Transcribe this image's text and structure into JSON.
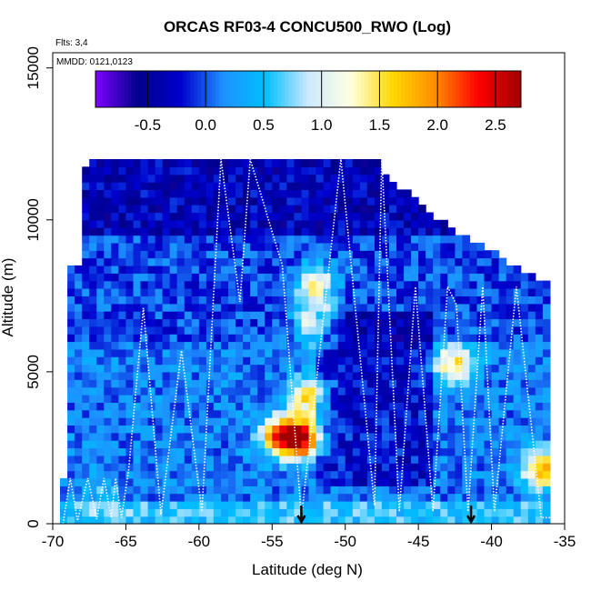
{
  "chart_data": {
    "type": "heatmap",
    "title": "ORCAS RF03-4 CONCU500_RWO (Log)",
    "annotations": [
      "Flts: 3,4",
      "MMDD: 0121,0123"
    ],
    "xlabel": "Latitude (deg N)",
    "ylabel": "Altitude (m)",
    "xlim": [
      -70,
      -35
    ],
    "ylim": [
      0,
      15500
    ],
    "x_ticks": [
      "-70",
      "-65",
      "-60",
      "-55",
      "-50",
      "-45",
      "-40",
      "-35"
    ],
    "y_ticks": [
      "0",
      "5000",
      "10000",
      "15000"
    ],
    "colorbar": {
      "range": [
        -0.95,
        2.72
      ],
      "ticks": [
        "-0.5",
        "0.0",
        "0.5",
        "1.0",
        "1.5",
        "2.0",
        "2.5"
      ],
      "colors": [
        "#7f00ff",
        "#00008b",
        "#0000cd",
        "#1e90ff",
        "#00bfff",
        "#cde8ff",
        "#ffffe0",
        "#ffd700",
        "#ff8c00",
        "#ff0000",
        "#a00000"
      ]
    },
    "flight_track_color": "#ffffff",
    "markers": [
      {
        "type": "down-arrow",
        "lat": -53.0
      },
      {
        "type": "down-arrow",
        "lat": -41.4
      }
    ],
    "hotspots": [
      {
        "lat": -53.0,
        "alt": 2800,
        "value": 2.5
      },
      {
        "lat": -54.5,
        "alt": 2900,
        "value": 2.0
      },
      {
        "lat": -52.0,
        "alt": 7900,
        "value": 1.6
      },
      {
        "lat": -52.0,
        "alt": 6600,
        "value": 1.4
      },
      {
        "lat": -52.5,
        "alt": 4200,
        "value": 1.5
      },
      {
        "lat": -42.5,
        "alt": 5300,
        "value": 1.6
      },
      {
        "lat": -36.5,
        "alt": 1800,
        "value": 2.0
      },
      {
        "lat": -66.5,
        "alt": 900,
        "value": 0.6
      }
    ]
  }
}
